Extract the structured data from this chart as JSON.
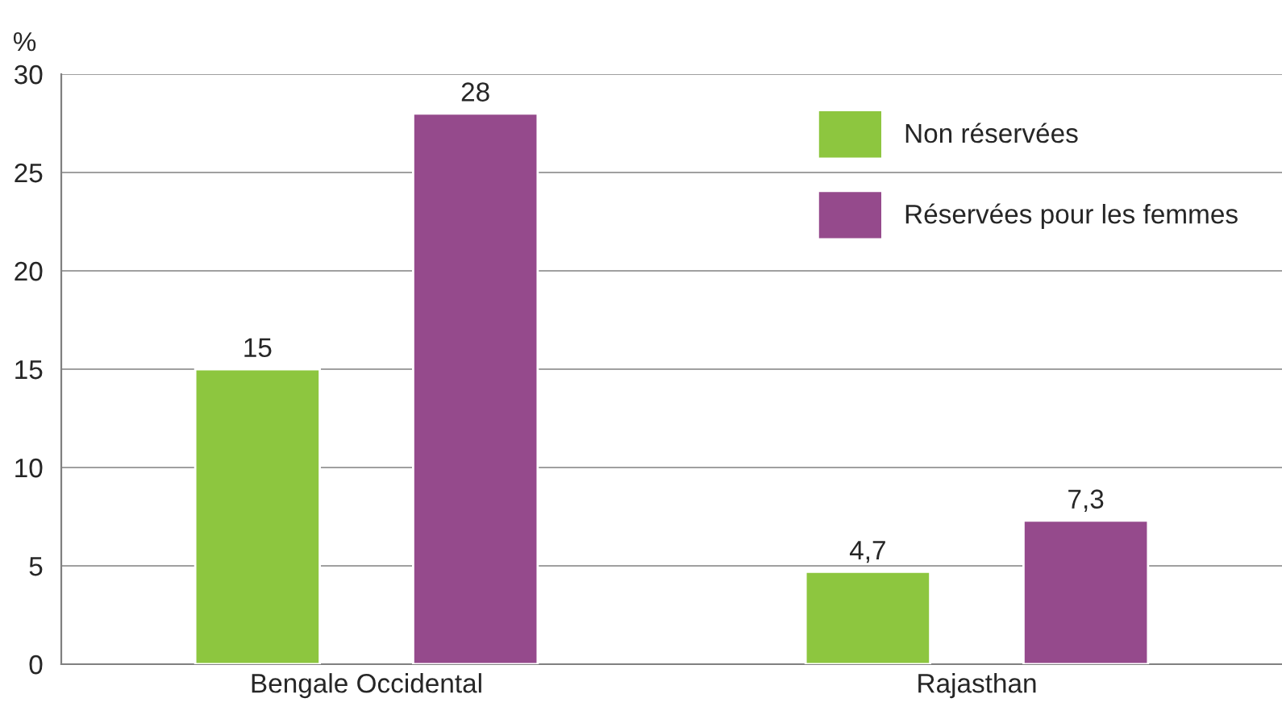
{
  "chart_data": {
    "type": "bar",
    "ylabel": "%",
    "categories": [
      "Bengale Occidental",
      "Rajasthan"
    ],
    "series": [
      {
        "name": "Non réservées",
        "color": "#8dc63f",
        "values": [
          15,
          4.7
        ],
        "value_labels": [
          "15",
          "4,7"
        ]
      },
      {
        "name": "Réservées pour les femmes",
        "color": "#954a8c",
        "values": [
          28,
          7.3
        ],
        "value_labels": [
          "28",
          "7,3"
        ]
      }
    ],
    "ylim": [
      0,
      30
    ],
    "yticks": [
      0,
      5,
      10,
      15,
      20,
      25,
      30
    ],
    "grid": "y",
    "legend": "top right"
  }
}
